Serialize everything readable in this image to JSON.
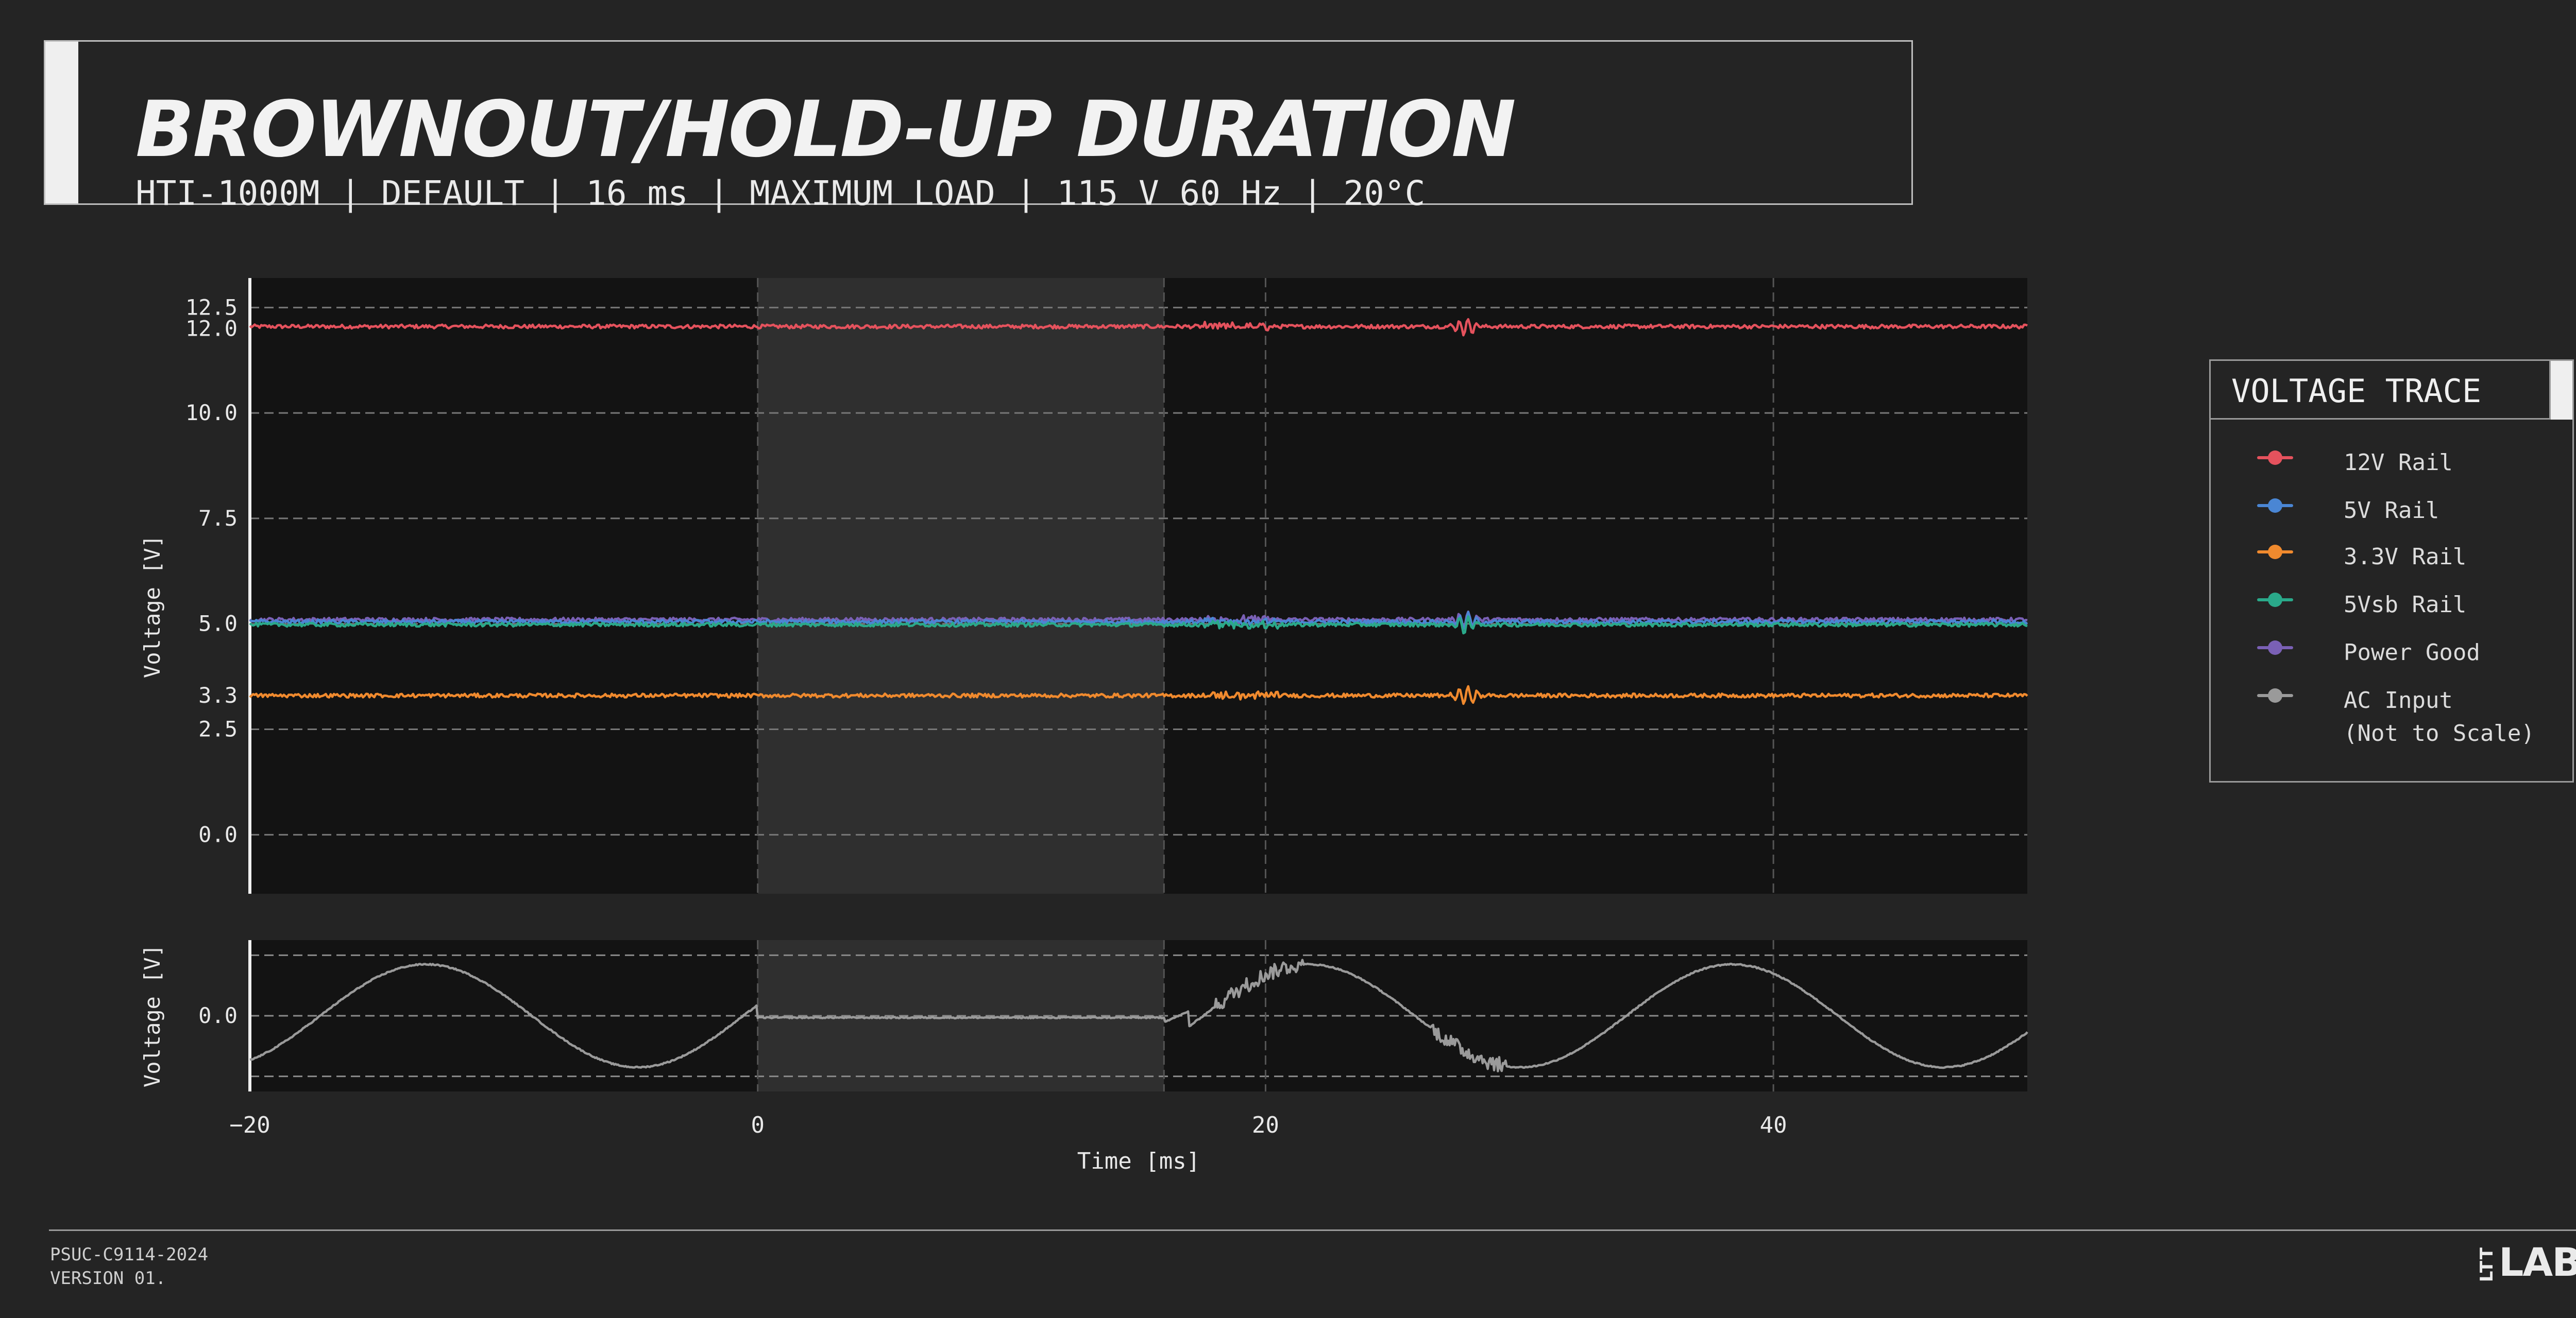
{
  "header": {
    "title": "BROWNOUT/HOLD-UP DURATION",
    "subtitle": "HTI-1000M | DEFAULT | 16 ms | MAXIMUM LOAD | 115 V 60 Hz | 20°C"
  },
  "legend": {
    "title": "VOLTAGE TRACE",
    "items": [
      {
        "label": "12V Rail",
        "color": "#e5525d"
      },
      {
        "label": "5V Rail",
        "color": "#4a86d4"
      },
      {
        "label": "3.3V Rail",
        "color": "#f08a2e"
      },
      {
        "label": "5Vsb Rail",
        "color": "#2aa98a"
      },
      {
        "label": "Power Good",
        "color": "#7a60b5"
      },
      {
        "label": "AC Input\n(Not to Scale)",
        "color": "#9a9a9a"
      }
    ]
  },
  "footer": {
    "code": "PSUC-C9114-2024",
    "version": "VERSION 01.",
    "logo_small": "LTT",
    "logo_large": "LABS"
  },
  "chart_data": [
    {
      "type": "line",
      "ylabel": "Voltage [V]",
      "xlim": [
        -20,
        50
      ],
      "ylim": [
        -1.4,
        13.2
      ],
      "yticks": [
        0.0,
        2.5,
        3.3,
        5.0,
        7.5,
        10.0,
        12.0,
        12.5
      ],
      "yticklabels": [
        "0.0",
        "2.5",
        "3.3",
        "5.0",
        "7.5",
        "10.0",
        "12.0",
        "12.5"
      ],
      "xgrid": [
        20,
        40
      ],
      "highlight": {
        "x_start": 0,
        "x_end": 16
      },
      "series": [
        {
          "name": "12V Rail",
          "constant": 12.05,
          "color": "#e5525d"
        },
        {
          "name": "Power Good",
          "constant": 5.1,
          "color": "#7a60b5"
        },
        {
          "name": "5V Rail",
          "constant": 5.05,
          "color": "#4a86d4"
        },
        {
          "name": "5Vsb Rail",
          "constant": 4.98,
          "color": "#2aa98a"
        },
        {
          "name": "3.3V Rail",
          "constant": 3.3,
          "color": "#f08a2e"
        }
      ]
    },
    {
      "type": "line",
      "xlabel": "Time [ms]",
      "ylabel": "Voltage [V]",
      "xlim": [
        -20,
        50
      ],
      "ylim": [
        -1.25,
        1.25
      ],
      "yticks": [
        0.0
      ],
      "yticklabels": [
        "0.0"
      ],
      "xticks": [
        -20,
        0,
        20,
        40
      ],
      "xticklabels": [
        "−20",
        "0",
        "20",
        "40"
      ],
      "hgrid": [
        -1.0,
        0.0,
        1.0
      ],
      "highlight": {
        "x_start": 0,
        "x_end": 16
      },
      "series": [
        {
          "name": "AC Input (Not to Scale)",
          "color": "#9a9a9a",
          "frequency_hz": 60,
          "amplitude": 0.85,
          "dropout_ms": [
            0,
            16
          ]
        }
      ]
    }
  ]
}
